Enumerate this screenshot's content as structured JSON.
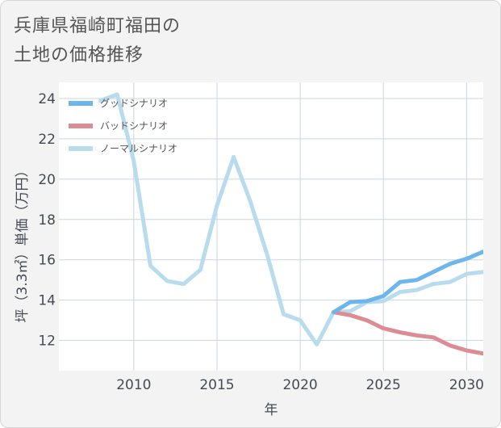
{
  "title_lines": [
    "兵庫県福崎町福田の",
    "土地の価格推移"
  ],
  "chart_data": {
    "type": "line",
    "xlabel": "年",
    "ylabel": "坪（3.3㎡）単価（万円）",
    "xlim": [
      2005.5,
      2031
    ],
    "ylim": [
      10.5,
      24.8
    ],
    "x_ticks": [
      2010,
      2015,
      2020,
      2025,
      2030
    ],
    "y_ticks": [
      12,
      14,
      16,
      18,
      20,
      22,
      24
    ],
    "grid": true,
    "legend_position": "top-left",
    "series": [
      {
        "name": "グッドシナリオ",
        "color": "#6cb6ec",
        "x": [
          2022,
          2023,
          2024,
          2025,
          2026,
          2027,
          2028,
          2029,
          2030,
          2031
        ],
        "y": [
          13.4,
          13.9,
          13.95,
          14.2,
          14.9,
          15.0,
          15.4,
          15.8,
          16.05,
          16.4
        ]
      },
      {
        "name": "バッドシナリオ",
        "color": "#dc8c93",
        "x": [
          2022,
          2023,
          2024,
          2025,
          2026,
          2027,
          2028,
          2029,
          2030,
          2031
        ],
        "y": [
          13.4,
          13.25,
          13.0,
          12.6,
          12.4,
          12.25,
          12.15,
          11.75,
          11.5,
          11.35
        ]
      },
      {
        "name": "ノーマルシナリオ",
        "color": "#b8dcee",
        "x": [
          2008,
          2009,
          2010,
          2011,
          2012,
          2013,
          2014,
          2015,
          2016,
          2017,
          2018,
          2019,
          2020,
          2021,
          2022,
          2023,
          2024,
          2025,
          2026,
          2027,
          2028,
          2029,
          2030,
          2031
        ],
        "y": [
          23.9,
          24.2,
          20.9,
          15.7,
          14.95,
          14.8,
          15.5,
          18.7,
          21.1,
          18.9,
          16.3,
          13.3,
          13.0,
          11.8,
          13.4,
          13.45,
          13.9,
          13.95,
          14.4,
          14.5,
          14.8,
          14.9,
          15.3,
          15.4
        ]
      }
    ]
  }
}
